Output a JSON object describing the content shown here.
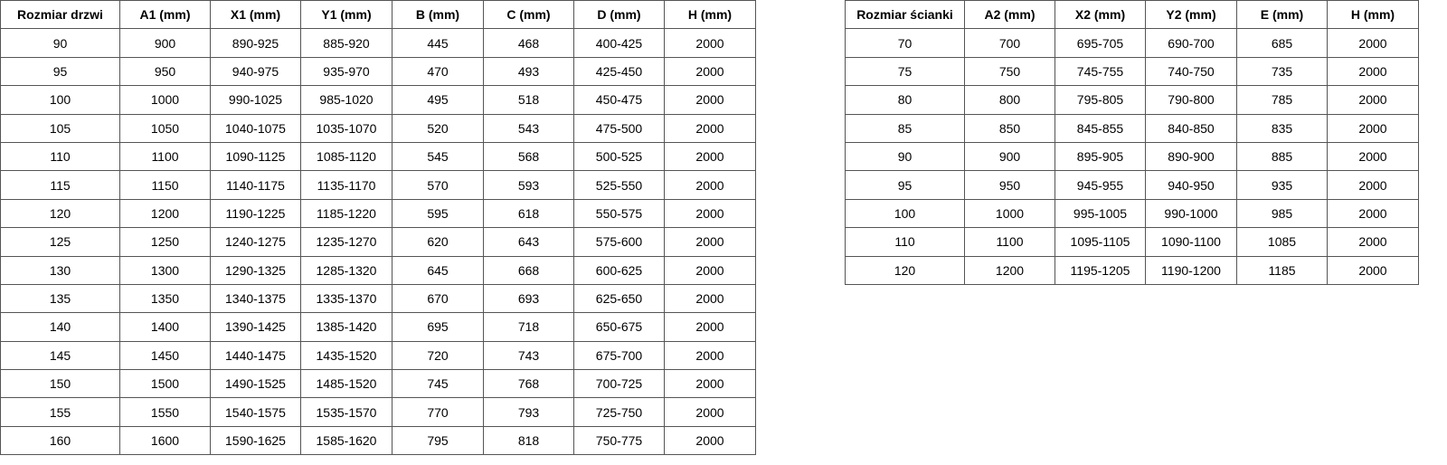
{
  "door_table": {
    "headers": [
      "Rozmiar drzwi",
      "A1 (mm)",
      "X1 (mm)",
      "Y1 (mm)",
      "B (mm)",
      "C (mm)",
      "D (mm)",
      "H (mm)"
    ],
    "rows": [
      [
        "90",
        "900",
        "890-925",
        "885-920",
        "445",
        "468",
        "400-425",
        "2000"
      ],
      [
        "95",
        "950",
        "940-975",
        "935-970",
        "470",
        "493",
        "425-450",
        "2000"
      ],
      [
        "100",
        "1000",
        "990-1025",
        "985-1020",
        "495",
        "518",
        "450-475",
        "2000"
      ],
      [
        "105",
        "1050",
        "1040-1075",
        "1035-1070",
        "520",
        "543",
        "475-500",
        "2000"
      ],
      [
        "110",
        "1100",
        "1090-1125",
        "1085-1120",
        "545",
        "568",
        "500-525",
        "2000"
      ],
      [
        "115",
        "1150",
        "1140-1175",
        "1135-1170",
        "570",
        "593",
        "525-550",
        "2000"
      ],
      [
        "120",
        "1200",
        "1190-1225",
        "1185-1220",
        "595",
        "618",
        "550-575",
        "2000"
      ],
      [
        "125",
        "1250",
        "1240-1275",
        "1235-1270",
        "620",
        "643",
        "575-600",
        "2000"
      ],
      [
        "130",
        "1300",
        "1290-1325",
        "1285-1320",
        "645",
        "668",
        "600-625",
        "2000"
      ],
      [
        "135",
        "1350",
        "1340-1375",
        "1335-1370",
        "670",
        "693",
        "625-650",
        "2000"
      ],
      [
        "140",
        "1400",
        "1390-1425",
        "1385-1420",
        "695",
        "718",
        "650-675",
        "2000"
      ],
      [
        "145",
        "1450",
        "1440-1475",
        "1435-1520",
        "720",
        "743",
        "675-700",
        "2000"
      ],
      [
        "150",
        "1500",
        "1490-1525",
        "1485-1520",
        "745",
        "768",
        "700-725",
        "2000"
      ],
      [
        "155",
        "1550",
        "1540-1575",
        "1535-1570",
        "770",
        "793",
        "725-750",
        "2000"
      ],
      [
        "160",
        "1600",
        "1590-1625",
        "1585-1620",
        "795",
        "818",
        "750-775",
        "2000"
      ]
    ]
  },
  "wall_table": {
    "headers": [
      "Rozmiar ścianki",
      "A2 (mm)",
      "X2 (mm)",
      "Y2 (mm)",
      "E (mm)",
      "H (mm)"
    ],
    "rows": [
      [
        "70",
        "700",
        "695-705",
        "690-700",
        "685",
        "2000"
      ],
      [
        "75",
        "750",
        "745-755",
        "740-750",
        "735",
        "2000"
      ],
      [
        "80",
        "800",
        "795-805",
        "790-800",
        "785",
        "2000"
      ],
      [
        "85",
        "850",
        "845-855",
        "840-850",
        "835",
        "2000"
      ],
      [
        "90",
        "900",
        "895-905",
        "890-900",
        "885",
        "2000"
      ],
      [
        "95",
        "950",
        "945-955",
        "940-950",
        "935",
        "2000"
      ],
      [
        "100",
        "1000",
        "995-1005",
        "990-1000",
        "985",
        "2000"
      ],
      [
        "110",
        "1100",
        "1095-1105",
        "1090-1100",
        "1085",
        "2000"
      ],
      [
        "120",
        "1200",
        "1195-1205",
        "1190-1200",
        "1185",
        "2000"
      ]
    ]
  }
}
